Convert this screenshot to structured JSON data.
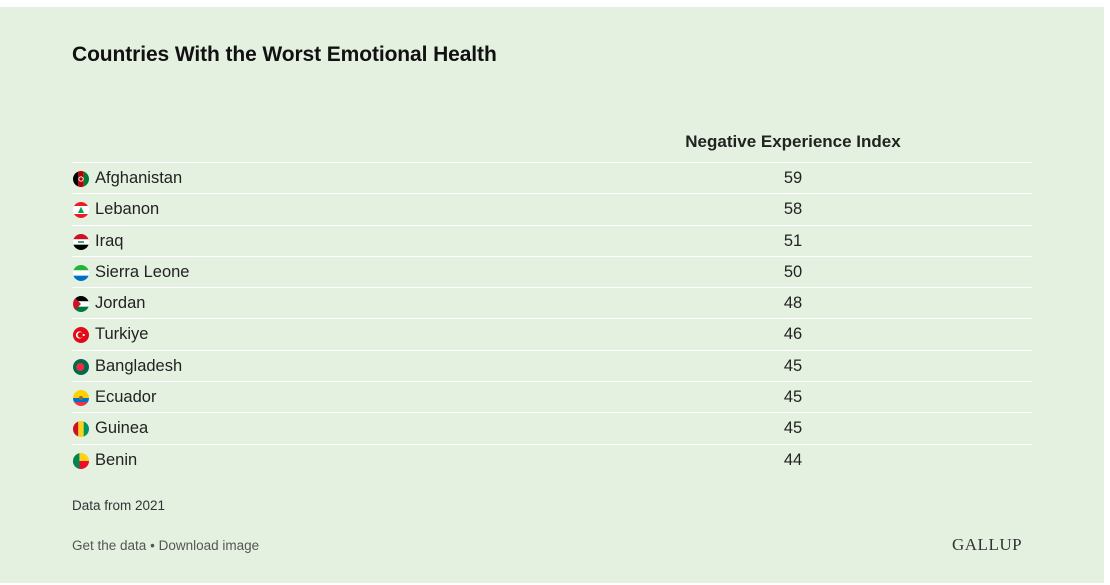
{
  "title": "Countries With the Worst Emotional Health",
  "chart_data": {
    "type": "table",
    "title": "Countries With the Worst Emotional Health",
    "column_header": "Negative Experience Index",
    "rows": [
      {
        "country": "Afghanistan",
        "value": 59,
        "flag": "afghanistan-flag-icon"
      },
      {
        "country": "Lebanon",
        "value": 58,
        "flag": "lebanon-flag-icon"
      },
      {
        "country": "Iraq",
        "value": 51,
        "flag": "iraq-flag-icon"
      },
      {
        "country": "Sierra Leone",
        "value": 50,
        "flag": "sierra-leone-flag-icon"
      },
      {
        "country": "Jordan",
        "value": 48,
        "flag": "jordan-flag-icon"
      },
      {
        "country": "Turkiye",
        "value": 46,
        "flag": "turkiye-flag-icon"
      },
      {
        "country": "Bangladesh",
        "value": 45,
        "flag": "bangladesh-flag-icon"
      },
      {
        "country": "Ecuador",
        "value": 45,
        "flag": "ecuador-flag-icon"
      },
      {
        "country": "Guinea",
        "value": 45,
        "flag": "guinea-flag-icon"
      },
      {
        "country": "Benin",
        "value": 44,
        "flag": "benin-flag-icon"
      }
    ]
  },
  "source": "Data from 2021",
  "footer": {
    "get_data": "Get the data",
    "separator": "•",
    "download": "Download image"
  },
  "logo": "GALLUP",
  "colors": {
    "background": "#e4f1e1",
    "divider": "#ffffff",
    "text": "#222222"
  }
}
